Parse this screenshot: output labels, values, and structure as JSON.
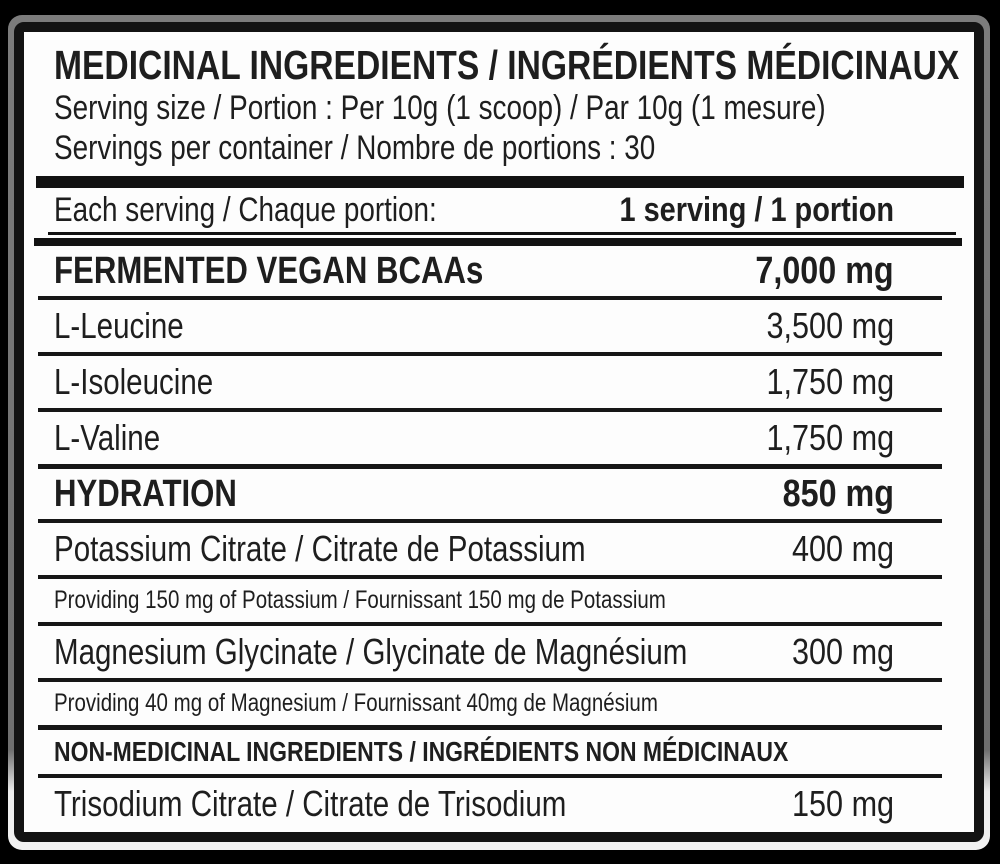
{
  "colors": {
    "background": "#000000",
    "label_background": "#fdfdfd",
    "label_border": "#131313",
    "text": "#1e1e1e",
    "edge_highlight": "#7c7c7c"
  },
  "label": {
    "title": "MEDICINAL INGREDIENTS / INGRÉDIENTS MÉDICINAUX",
    "serving_size": "Serving size / Portion : Per 10g (1 scoop) / Par 10g (1 mesure)",
    "servings_per_container": "Servings per container / Nombre de portions : 30",
    "each_serving": {
      "label": "Each serving / Chaque portion:",
      "value": "1 serving / 1 portion"
    },
    "rows": [
      {
        "type": "section",
        "name": "FERMENTED VEGAN BCAAs",
        "amount": "7,000 mg"
      },
      {
        "type": "item",
        "name": "L-Leucine",
        "amount": "3,500 mg"
      },
      {
        "type": "item",
        "name": "L-Isoleucine",
        "amount": "1,750 mg"
      },
      {
        "type": "item",
        "name": "L-Valine",
        "amount": "1,750 mg"
      },
      {
        "type": "section",
        "name": "HYDRATION",
        "amount": "850 mg"
      },
      {
        "type": "item",
        "name": "Potassium Citrate / Citrate de Potassium",
        "amount": "400 mg"
      },
      {
        "type": "note",
        "name": "Providing 150 mg of Potassium / Fournissant 150 mg de Potassium"
      },
      {
        "type": "item",
        "name": "Magnesium Glycinate / Glycinate de Magnésium",
        "amount": "300 mg"
      },
      {
        "type": "note",
        "name": "Providing 40 mg of Magnesium / Fournissant 40mg de Magnésium"
      },
      {
        "type": "subheader",
        "name": "NON-MEDICINAL INGREDIENTS / INGRÉDIENTS NON MÉDICINAUX"
      },
      {
        "type": "item",
        "name": "Trisodium Citrate / Citrate de Trisodium",
        "amount": "150 mg"
      }
    ]
  }
}
